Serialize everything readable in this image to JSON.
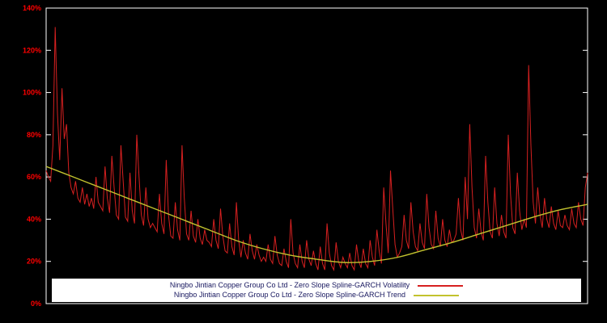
{
  "chart_data": {
    "type": "line",
    "title": "",
    "xlabel": "",
    "ylabel": "",
    "x_range": [
      0,
      1
    ],
    "ylim": [
      0,
      140
    ],
    "grid": false,
    "background_color": "#000000",
    "frame_color": "#ffffff",
    "tick_label_color": "#ff0000",
    "legend_position": "bottom-center",
    "yticks": {
      "values": [
        0,
        20,
        40,
        60,
        80,
        100,
        120,
        140
      ],
      "labels": [
        "0%",
        "20%",
        "40%",
        "60%",
        "80%",
        "100%",
        "120%",
        "140%"
      ]
    },
    "series": [
      {
        "name": "Ningbo Jintian Copper Group Co Ltd - Zero Slope Spline-GARCH Volatility",
        "color": "#d62020",
        "unit": "%",
        "values": [
          63,
          60,
          58,
          75,
          131,
          90,
          68,
          102,
          78,
          85,
          62,
          55,
          52,
          58,
          50,
          48,
          55,
          47,
          52,
          46,
          50,
          45,
          60,
          48,
          46,
          44,
          65,
          50,
          43,
          70,
          55,
          42,
          40,
          75,
          58,
          41,
          39,
          62,
          44,
          38,
          80,
          60,
          42,
          37,
          55,
          40,
          36,
          38,
          36,
          34,
          52,
          38,
          33,
          68,
          42,
          32,
          31,
          48,
          35,
          30,
          75,
          50,
          33,
          30,
          44,
          32,
          29,
          40,
          31,
          28,
          35,
          30,
          29,
          27,
          40,
          30,
          26,
          45,
          32,
          25,
          24,
          38,
          27,
          23,
          48,
          30,
          22,
          30,
          24,
          21,
          33,
          25,
          21,
          28,
          23,
          20,
          22,
          20,
          28,
          21,
          19,
          32,
          23,
          19,
          18,
          26,
          20,
          17,
          40,
          24,
          19,
          17,
          28,
          20,
          17,
          30,
          21,
          18,
          25,
          19,
          16,
          27,
          19,
          16,
          38,
          24,
          18,
          16,
          29,
          20,
          17,
          22,
          19,
          17,
          24,
          18,
          16,
          28,
          20,
          17,
          26,
          19,
          17,
          30,
          22,
          18,
          35,
          25,
          19,
          55,
          38,
          24,
          63,
          45,
          28,
          22,
          24,
          27,
          42,
          30,
          26,
          48,
          34,
          27,
          25,
          38,
          29,
          26,
          52,
          36,
          28,
          26,
          44,
          31,
          27,
          40,
          30,
          27,
          35,
          29,
          30,
          33,
          50,
          35,
          30,
          60,
          40,
          85,
          55,
          36,
          31,
          45,
          34,
          30,
          70,
          48,
          34,
          31,
          55,
          38,
          32,
          42,
          34,
          31,
          80,
          52,
          36,
          33,
          62,
          44,
          35,
          40,
          36,
          113,
          75,
          48,
          38,
          55,
          42,
          36,
          50,
          40,
          36,
          46,
          38,
          35,
          44,
          37,
          36,
          42,
          37,
          35,
          45,
          38,
          36,
          48,
          40,
          37,
          55,
          62
        ]
      },
      {
        "name": "Ningbo Jintian Copper Group Co Ltd - Zero Slope Spline-GARCH Trend",
        "color": "#c2c22e",
        "unit": "%",
        "values": [
          65,
          60,
          55,
          50,
          45,
          40,
          35,
          30,
          26,
          23,
          21,
          19.5,
          20,
          22,
          25.5,
          29,
          33,
          37,
          41,
          44.5,
          47
        ]
      }
    ]
  }
}
